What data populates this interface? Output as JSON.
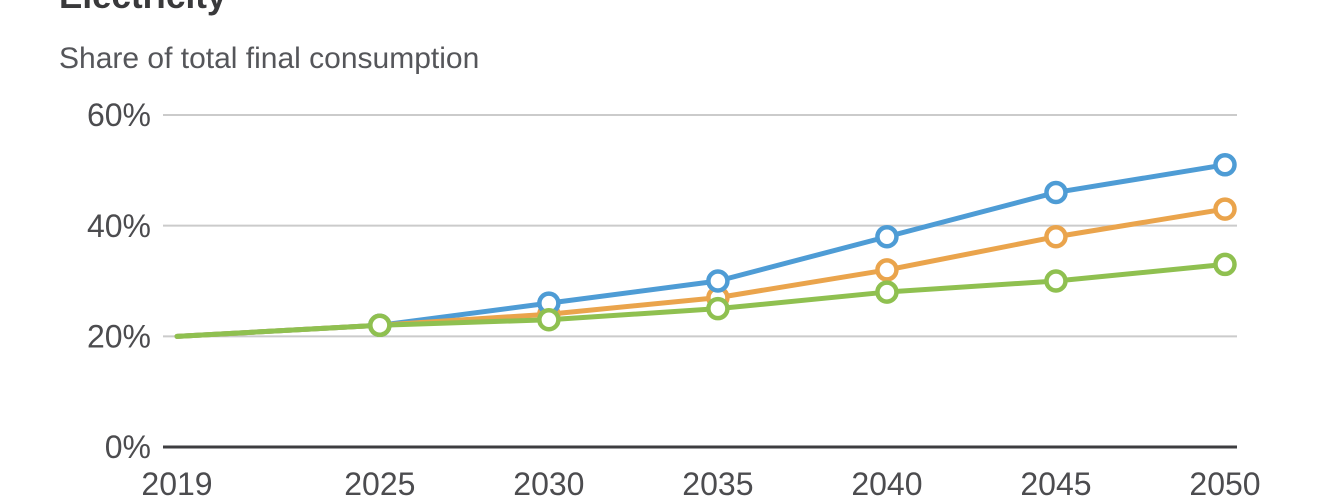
{
  "header": {
    "title": "Electricity",
    "subtitle": "Share of total final consumption"
  },
  "chart_data": {
    "type": "line",
    "title": "Electricity",
    "subtitle": "Share of total final consumption",
    "x": [
      2019,
      2025,
      2030,
      2035,
      2040,
      2045,
      2050
    ],
    "x_tick_labels": [
      "2019",
      "2025",
      "2030",
      "2035",
      "2040",
      "2045",
      "2050"
    ],
    "xlim": [
      2019,
      2050
    ],
    "y_ticks": [
      0,
      20,
      40,
      60
    ],
    "y_tick_labels": [
      "0%",
      "20%",
      "40%",
      "60%"
    ],
    "ylim": [
      0,
      60
    ],
    "grid": "horizontal-only",
    "legend_position": "none",
    "marker_style": "open-circle",
    "marker_on_first_point": false,
    "series": [
      {
        "name": "series-blue",
        "color": "#4E9CD5",
        "values": [
          20,
          22,
          26,
          30,
          38,
          46,
          51
        ]
      },
      {
        "name": "series-orange",
        "color": "#EAA44C",
        "values": [
          20,
          22,
          24,
          27,
          32,
          38,
          43
        ]
      },
      {
        "name": "series-green",
        "color": "#8FC050",
        "values": [
          20,
          22,
          23,
          25,
          28,
          30,
          33
        ]
      }
    ],
    "colors": {
      "grid_line": "#CBCBCB",
      "axis_line": "#3E3E40",
      "tick_text": "#4C4C4F",
      "title_text": "#39393B",
      "subtitle_text": "#55565A",
      "background": "#FFFFFF"
    }
  }
}
